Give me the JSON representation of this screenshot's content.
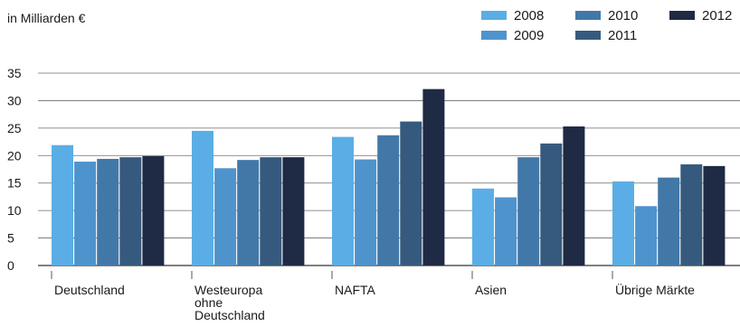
{
  "chart_data": {
    "type": "bar",
    "unit_label": "in Milliarden €",
    "categories": [
      [
        "Deutschland"
      ],
      [
        "Westeuropa",
        "ohne",
        "Deutschland"
      ],
      [
        "NAFTA"
      ],
      [
        "Asien"
      ],
      [
        "Übrige Märkte"
      ]
    ],
    "series": [
      {
        "name": "2008",
        "color": "#5aaee5",
        "values": [
          21.9,
          24.5,
          23.4,
          14.0,
          15.3
        ]
      },
      {
        "name": "2009",
        "color": "#4f93cd",
        "values": [
          18.9,
          17.7,
          19.3,
          12.4,
          10.8
        ]
      },
      {
        "name": "2010",
        "color": "#4278a8",
        "values": [
          19.4,
          19.2,
          23.7,
          19.7,
          16.0
        ]
      },
      {
        "name": "2011",
        "color": "#365a7e",
        "values": [
          19.7,
          19.7,
          26.2,
          22.2,
          18.4
        ]
      },
      {
        "name": "2012",
        "color": "#1f2a44",
        "values": [
          19.9,
          19.7,
          32.1,
          25.3,
          18.1
        ]
      }
    ],
    "yticks": [
      0,
      5,
      10,
      15,
      20,
      25,
      30,
      35
    ],
    "ylim": [
      0,
      35
    ],
    "grid": true,
    "legend_position": "top-right"
  }
}
